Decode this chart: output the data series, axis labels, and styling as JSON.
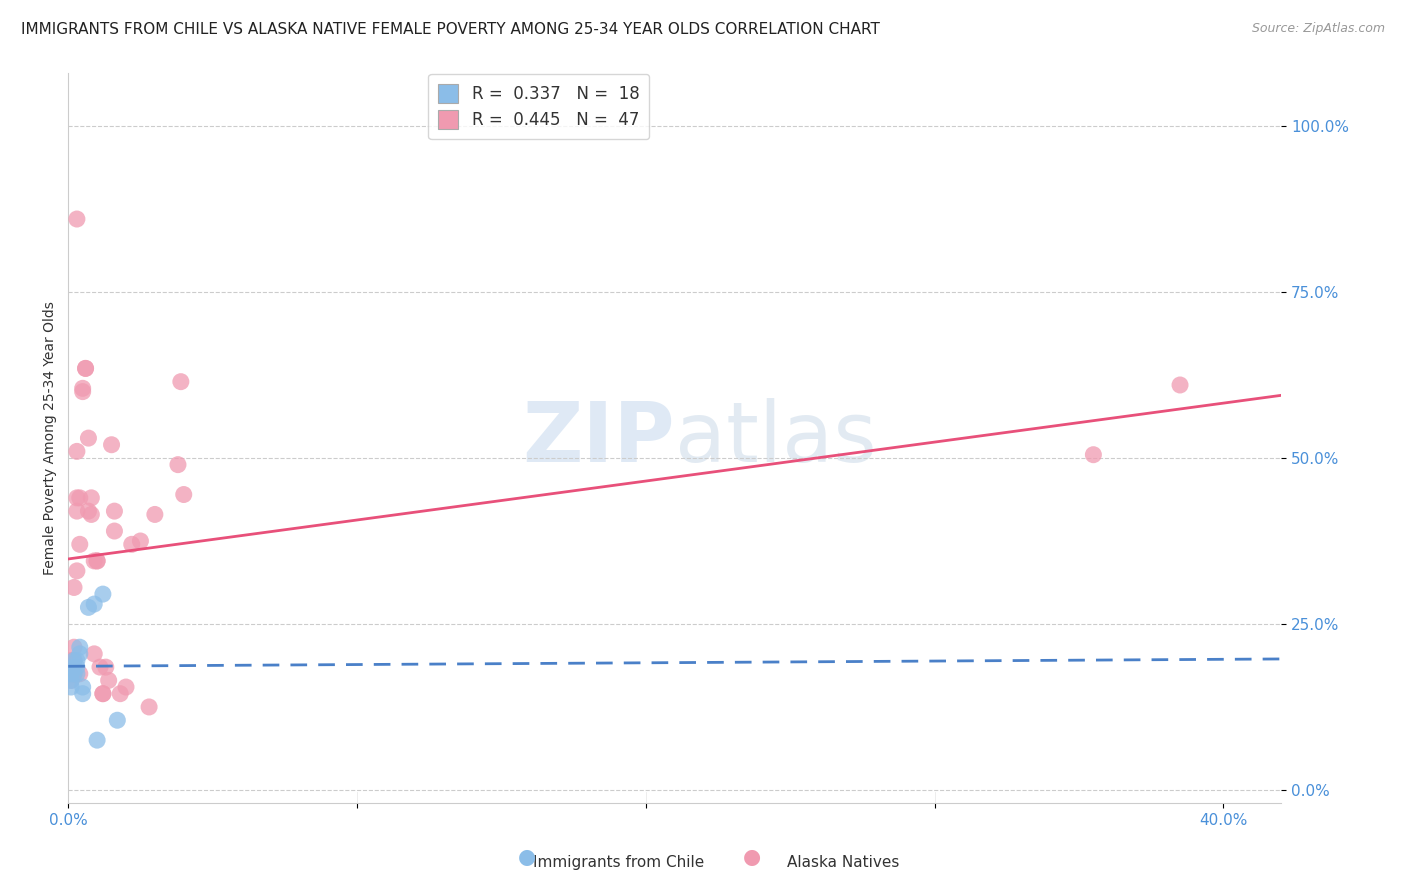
{
  "title": "IMMIGRANTS FROM CHILE VS ALASKA NATIVE FEMALE POVERTY AMONG 25-34 YEAR OLDS CORRELATION CHART",
  "source": "Source: ZipAtlas.com",
  "ylabel": "Female Poverty Among 25-34 Year Olds",
  "ytick_labels": [
    "0.0%",
    "25.0%",
    "50.0%",
    "75.0%",
    "100.0%"
  ],
  "ytick_values": [
    0.0,
    0.25,
    0.5,
    0.75,
    1.0
  ],
  "xtick_labels": [
    "0.0%",
    "",
    "",
    "",
    "40.0%"
  ],
  "xtick_values": [
    0.0,
    0.1,
    0.2,
    0.3,
    0.4
  ],
  "xlim": [
    0.0,
    0.42
  ],
  "ylim": [
    -0.02,
    1.08
  ],
  "legend_label1": "Immigrants from Chile",
  "legend_label2": "Alaska Natives",
  "chile_color": "#8bbde8",
  "alaska_color": "#f09ab0",
  "chile_line_color": "#4a80c8",
  "alaska_line_color": "#e8507a",
  "watermark_text": "ZIPatlas",
  "chile_points": [
    [
      0.001,
      0.155
    ],
    [
      0.001,
      0.175
    ],
    [
      0.001,
      0.165
    ],
    [
      0.002,
      0.175
    ],
    [
      0.002,
      0.185
    ],
    [
      0.002,
      0.195
    ],
    [
      0.003,
      0.185
    ],
    [
      0.003,
      0.175
    ],
    [
      0.003,
      0.195
    ],
    [
      0.004,
      0.215
    ],
    [
      0.004,
      0.205
    ],
    [
      0.005,
      0.155
    ],
    [
      0.005,
      0.145
    ],
    [
      0.007,
      0.275
    ],
    [
      0.009,
      0.28
    ],
    [
      0.01,
      0.075
    ],
    [
      0.012,
      0.295
    ],
    [
      0.017,
      0.105
    ]
  ],
  "alaska_points": [
    [
      0.001,
      0.175
    ],
    [
      0.001,
      0.195
    ],
    [
      0.001,
      0.165
    ],
    [
      0.001,
      0.185
    ],
    [
      0.002,
      0.215
    ],
    [
      0.002,
      0.195
    ],
    [
      0.002,
      0.175
    ],
    [
      0.002,
      0.305
    ],
    [
      0.003,
      0.33
    ],
    [
      0.003,
      0.42
    ],
    [
      0.003,
      0.44
    ],
    [
      0.003,
      0.51
    ],
    [
      0.003,
      0.86
    ],
    [
      0.004,
      0.37
    ],
    [
      0.004,
      0.44
    ],
    [
      0.004,
      0.175
    ],
    [
      0.005,
      0.605
    ],
    [
      0.005,
      0.6
    ],
    [
      0.006,
      0.635
    ],
    [
      0.006,
      0.635
    ],
    [
      0.007,
      0.53
    ],
    [
      0.007,
      0.42
    ],
    [
      0.008,
      0.44
    ],
    [
      0.008,
      0.415
    ],
    [
      0.009,
      0.345
    ],
    [
      0.009,
      0.205
    ],
    [
      0.01,
      0.345
    ],
    [
      0.01,
      0.345
    ],
    [
      0.011,
      0.185
    ],
    [
      0.012,
      0.145
    ],
    [
      0.012,
      0.145
    ],
    [
      0.013,
      0.185
    ],
    [
      0.014,
      0.165
    ],
    [
      0.015,
      0.52
    ],
    [
      0.016,
      0.42
    ],
    [
      0.016,
      0.39
    ],
    [
      0.018,
      0.145
    ],
    [
      0.02,
      0.155
    ],
    [
      0.022,
      0.37
    ],
    [
      0.025,
      0.375
    ],
    [
      0.028,
      0.125
    ],
    [
      0.03,
      0.415
    ],
    [
      0.038,
      0.49
    ],
    [
      0.039,
      0.615
    ],
    [
      0.04,
      0.445
    ],
    [
      0.355,
      0.505
    ],
    [
      0.385,
      0.61
    ]
  ],
  "grid_color": "#cccccc",
  "spine_color": "#cccccc",
  "tick_color": "#4a90d9",
  "title_fontsize": 11,
  "source_fontsize": 9,
  "axis_fontsize": 11,
  "legend_fontsize": 12
}
